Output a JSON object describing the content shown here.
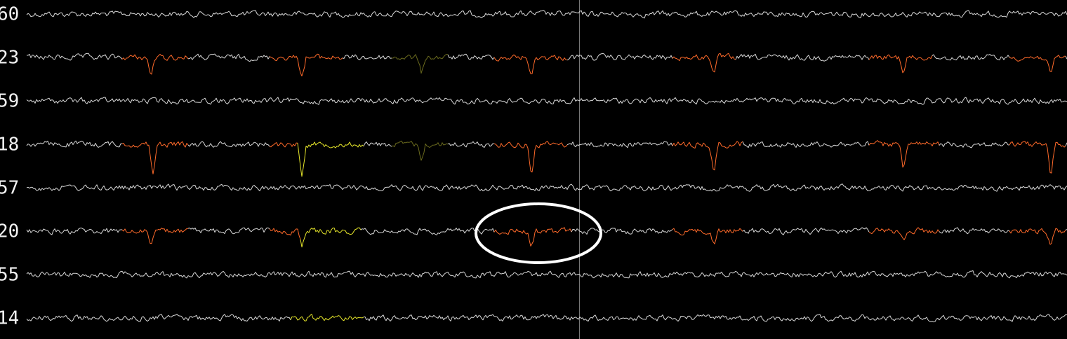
{
  "channels": [
    {
      "label": "60"
    },
    {
      "label": "23"
    },
    {
      "label": "59"
    },
    {
      "label": "18"
    },
    {
      "label": "57"
    },
    {
      "label": "20"
    },
    {
      "label": "55"
    },
    {
      "label": "14"
    }
  ]
}
